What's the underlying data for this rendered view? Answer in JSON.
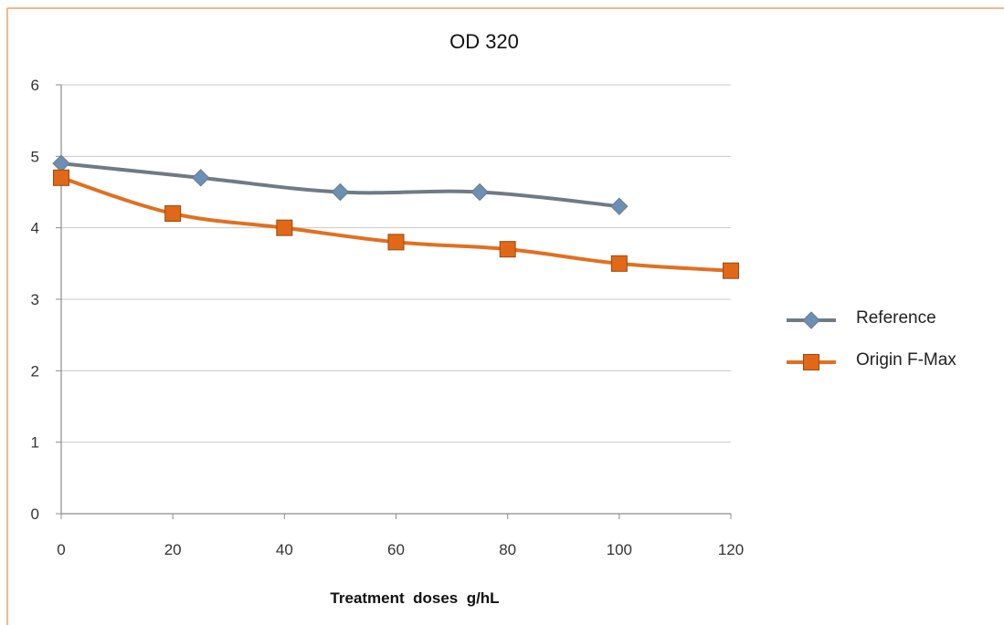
{
  "colors": {
    "frame": "#f0a060",
    "grid": "#c8c8c8",
    "axis": "#8c8c8c"
  },
  "chart_data": {
    "type": "line",
    "title": "OD 320",
    "xlabel": "Treatment  doses  g/hL",
    "ylabel": "",
    "xlim": [
      0,
      120
    ],
    "ylim": [
      0,
      6
    ],
    "x_ticks": [
      "0",
      "20",
      "40",
      "60",
      "80",
      "100",
      "120"
    ],
    "y_ticks": [
      "0",
      "1",
      "2",
      "3",
      "4",
      "5",
      "6"
    ],
    "grid": true,
    "legend_position": "right",
    "series": [
      {
        "name": "Reference",
        "color": "#6e7b86",
        "marker_color": "#6c8fb5",
        "marker": "diamond",
        "x": [
          0,
          25,
          50,
          75,
          100
        ],
        "y": [
          4.9,
          4.7,
          4.5,
          4.5,
          4.3
        ]
      },
      {
        "name": "Origin F-Max",
        "color": "#e07020",
        "marker_color": "#e06818",
        "marker": "square",
        "x": [
          0,
          20,
          40,
          60,
          80,
          100,
          120
        ],
        "y": [
          4.7,
          4.2,
          4.0,
          3.8,
          3.7,
          3.5,
          3.4
        ]
      }
    ]
  }
}
